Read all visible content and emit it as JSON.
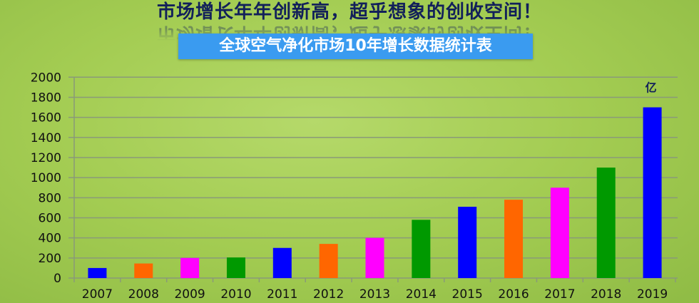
{
  "header": {
    "headline": "市场增长年年创新高，超乎想象的创收空间！",
    "subtitle": "全球空气净化市场10年增长数据统计表"
  },
  "chart_data": {
    "type": "bar",
    "title": "全球空气净化市场10年增长数据统计表",
    "categories": [
      "2007",
      "2008",
      "2009",
      "2010",
      "2011",
      "2012",
      "2013",
      "2014",
      "2015",
      "2016",
      "2017",
      "2018",
      "2019"
    ],
    "values": [
      100,
      145,
      200,
      205,
      300,
      340,
      400,
      580,
      710,
      780,
      900,
      1100,
      1700
    ],
    "colors": [
      "#0000ff",
      "#ff6600",
      "#ff00ff",
      "#009900",
      "#0000ff",
      "#ff6600",
      "#ff00ff",
      "#009900",
      "#0000ff",
      "#ff6600",
      "#ff00ff",
      "#009900",
      "#0000ff"
    ],
    "yticks": [
      "0",
      "200",
      "400",
      "600",
      "800",
      "1000",
      "1200",
      "1400",
      "1600",
      "1800",
      "2000"
    ],
    "ylim": [
      0,
      2000
    ],
    "unit_label": "亿",
    "xlabel": "",
    "ylabel": "",
    "grid": true
  }
}
